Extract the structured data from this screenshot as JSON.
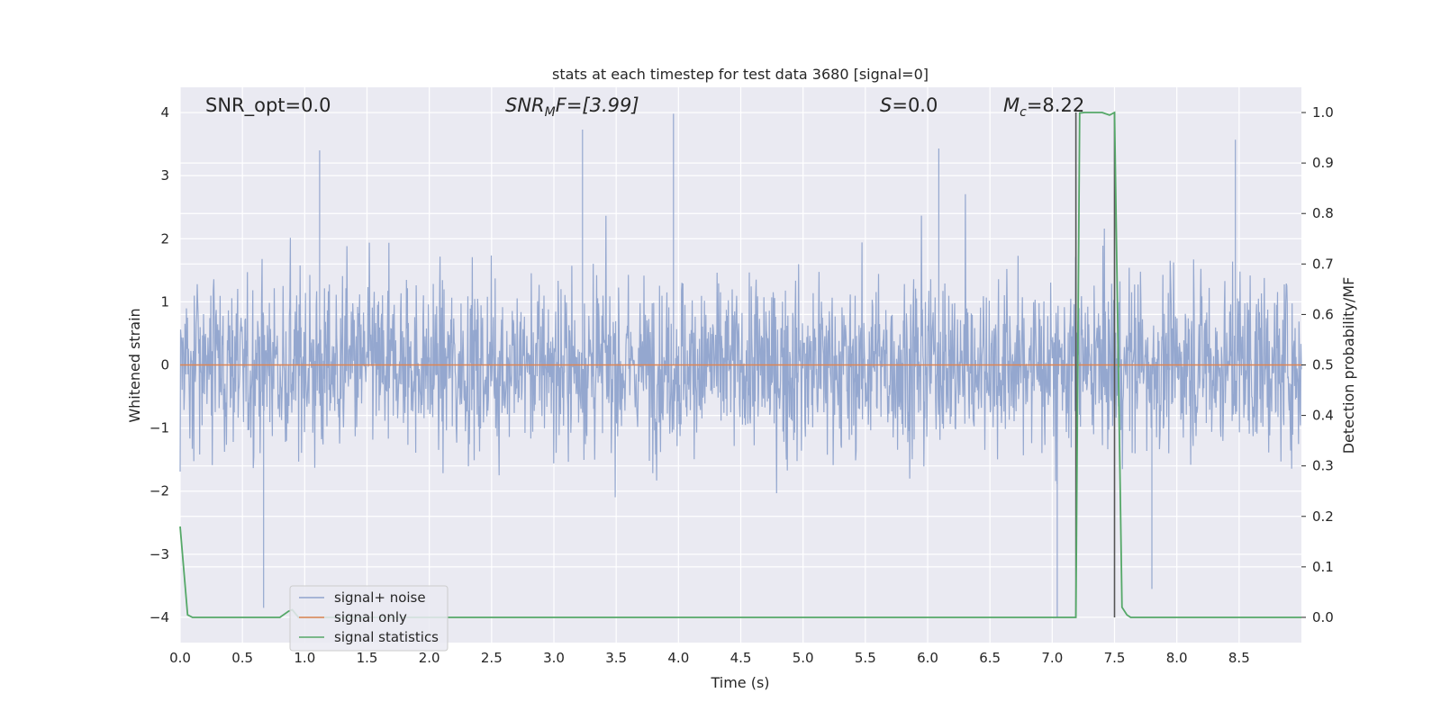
{
  "chart_data": {
    "type": "line",
    "title": "stats at each timestep for test data 3680 [signal=0]",
    "xlabel": "Time (s)",
    "ylabel_left": "Whitened strain",
    "ylabel_right": "Detection probability/MF",
    "xlim": [
      0,
      9.0
    ],
    "ylim_left": [
      -4.4,
      4.4
    ],
    "ylim_right": [
      -0.05,
      1.05
    ],
    "grid": true,
    "legend_placement": "lower-left",
    "x_ticks": [
      "0.0",
      "0.5",
      "1.0",
      "1.5",
      "2.0",
      "2.5",
      "3.0",
      "3.5",
      "4.0",
      "4.5",
      "5.0",
      "5.5",
      "6.0",
      "6.5",
      "7.0",
      "7.5",
      "8.0",
      "8.5"
    ],
    "y_ticks_left": [
      "4",
      "3",
      "2",
      "1",
      "0",
      "−1",
      "−2",
      "−3",
      "−4"
    ],
    "y_ticks_right": [
      "1.0",
      "0.9",
      "0.8",
      "0.7",
      "0.6",
      "0.5",
      "0.4",
      "0.3",
      "0.2",
      "0.1",
      "0.0"
    ],
    "annotations": {
      "snr_opt": "SNR_opt=0.0",
      "snr_mf_main": "SNR",
      "snr_mf_sub": "M",
      "snr_mf_rest": "F=[3.99]",
      "s_main": "S",
      "s_rest": "=0.0",
      "mc_main": "M",
      "mc_sub": "c",
      "mc_rest": "=8.22"
    },
    "series": [
      {
        "name": "signal+ noise",
        "color": "#8fa3cc",
        "axis": "left",
        "description_envelope": {
          "typical_upper": 2.0,
          "typical_lower": -1.9,
          "peaks": [
            [
              0.67,
              -3.85
            ],
            [
              1.12,
              3.4
            ],
            [
              3.23,
              3.73
            ],
            [
              3.96,
              3.98
            ],
            [
              6.09,
              3.43
            ],
            [
              7.04,
              -4.0
            ],
            [
              7.5,
              3.7
            ],
            [
              7.8,
              -3.55
            ],
            [
              8.47,
              3.57
            ]
          ]
        }
      },
      {
        "name": "signal only",
        "color": "#dd8452",
        "axis": "left",
        "x": [
          0,
          9.0
        ],
        "y": [
          0,
          0
        ]
      },
      {
        "name": "signal statistics",
        "color": "#55a868",
        "axis": "right",
        "x": [
          0.0,
          0.06,
          0.1,
          0.2,
          0.5,
          0.8,
          0.87,
          0.9,
          0.95,
          1.0,
          3.0,
          5.0,
          7.0,
          7.19,
          7.22,
          7.26,
          7.33,
          7.4,
          7.46,
          7.5,
          7.56,
          7.6,
          7.63,
          8.0,
          9.0
        ],
        "y": [
          0.18,
          0.005,
          0.0,
          0.0,
          0.0,
          0.0,
          0.012,
          0.015,
          0.0,
          0.0,
          0.0,
          0.0,
          0.0,
          0.0,
          0.999,
          1.0,
          1.0,
          1.0,
          0.995,
          1.0,
          0.02,
          0.005,
          0.0,
          0.0,
          0.0
        ]
      }
    ],
    "markers": {
      "color": "#555555",
      "lines": [
        {
          "x": 7.19,
          "y_from": 0.0,
          "y_to": 1.0
        },
        {
          "x": 7.5,
          "y_from": 0.0,
          "y_to": 1.0
        }
      ]
    },
    "colors": {
      "axes_bg": "#eaeaf2",
      "grid": "#ffffff"
    }
  }
}
